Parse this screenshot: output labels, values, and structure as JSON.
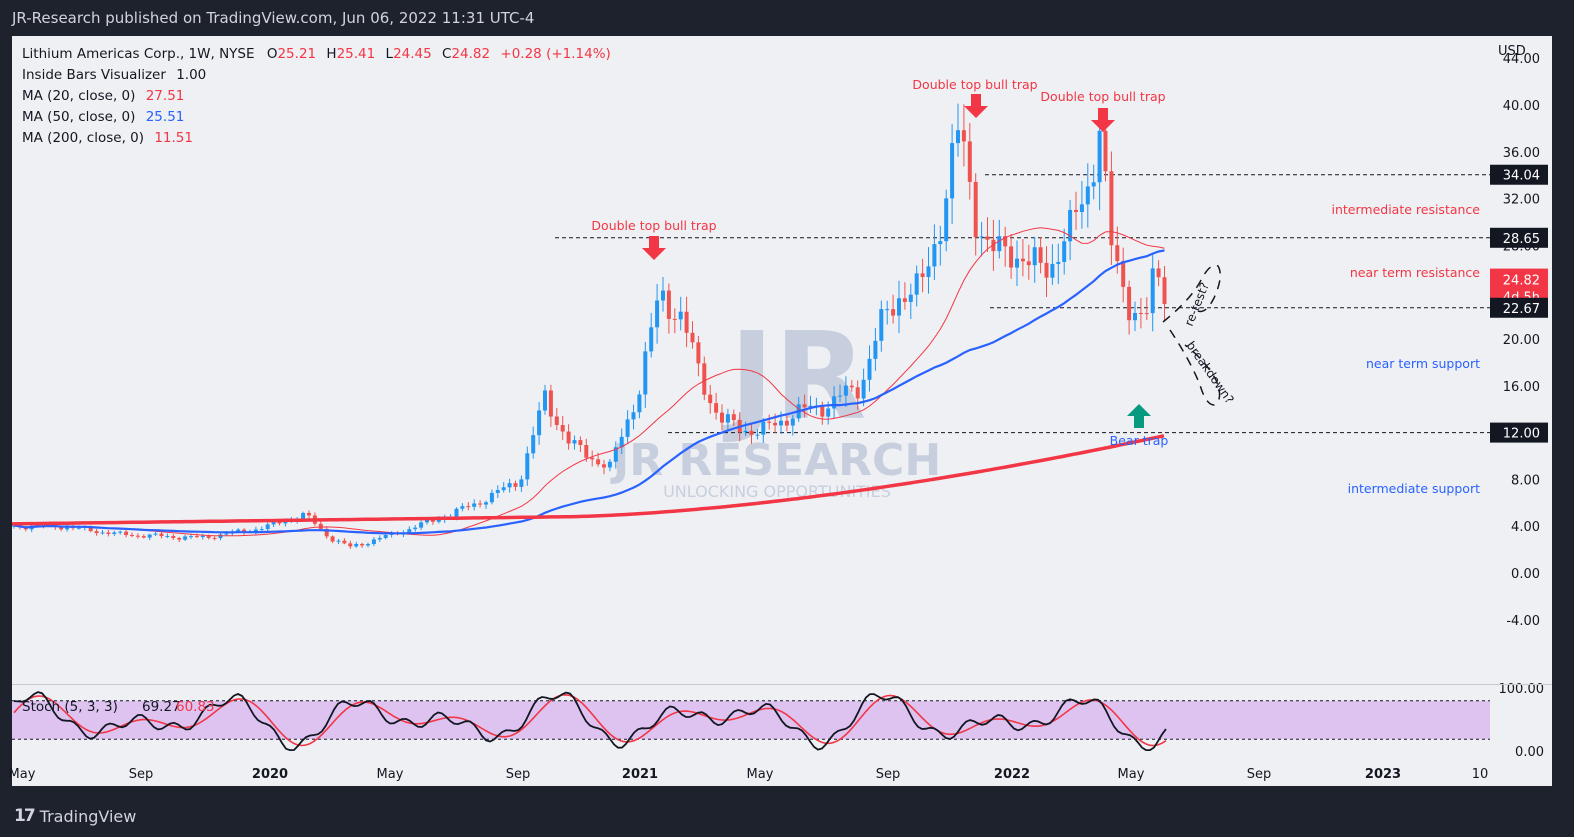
{
  "header": {
    "publisher": "JR-Research published on TradingView.com, Jun 06, 2022 11:31 UTC-4"
  },
  "legend": {
    "symbol": "Lithium Americas Corp., 1W, NYSE",
    "ohlc": {
      "O": "25.21",
      "H": "25.41",
      "L": "24.45",
      "C": "24.82",
      "change": "+0.28 (+1.14%)"
    },
    "indicator": {
      "name": "Inside Bars Visualizer",
      "value": "1.00"
    },
    "ma": [
      {
        "label": "MA (20, close, 0)",
        "value": "27.51",
        "color": "#f23645"
      },
      {
        "label": "MA (50, close, 0)",
        "value": "25.51",
        "color": "#2962ff"
      },
      {
        "label": "MA (200, close, 0)",
        "value": "11.51",
        "color": "#f23645"
      }
    ]
  },
  "watermark": {
    "logo": "JR",
    "name": "JR RESEARCH",
    "tagline": "UNLOCKING OPPORTUNITIES"
  },
  "footer": {
    "brand": "TradingView",
    "logo_mark": "17"
  },
  "chart_data": {
    "type": "candlestick",
    "currency": "USD",
    "timeframe": "1W",
    "y_range": [
      -6,
      48
    ],
    "y_ticks": [
      "44.00",
      "40.00",
      "36.00",
      "32.00",
      "28.00",
      "24.00",
      "20.00",
      "16.00",
      "12.00",
      "8.00",
      "4.00",
      "0.00",
      "-4.00"
    ],
    "x_labels": [
      "May",
      "Sep",
      "2020",
      "May",
      "Sep",
      "2021",
      "May",
      "Sep",
      "2022",
      "May",
      "Sep",
      "2023",
      "10"
    ],
    "price_labels": [
      {
        "value": 34.04,
        "text": "34.04",
        "color": "#131722"
      },
      {
        "value": 28.65,
        "text": "28.65",
        "color": "#131722"
      },
      {
        "value": 24.82,
        "text": "24.82",
        "sub": "4d 5h",
        "color": "#f23645"
      },
      {
        "value": 22.67,
        "text": "22.67",
        "color": "#131722"
      },
      {
        "value": 12.0,
        "text": "12.00",
        "color": "#131722"
      }
    ],
    "levels": [
      {
        "value": 34.04,
        "label": "intermediate resistance",
        "color": "#f23645"
      },
      {
        "value": 28.65,
        "label": "near term resistance",
        "color": "#f23645"
      },
      {
        "value": 22.67,
        "label": "near term support",
        "color": "#2962ff"
      },
      {
        "value": 12.0,
        "label": "intermediate support",
        "color": "#2962ff"
      }
    ],
    "annotations": [
      {
        "text": "Double top bull trap",
        "color": "#f23645"
      },
      {
        "text": "Double top bull trap",
        "color": "#f23645"
      },
      {
        "text": "Double top bull trap",
        "color": "#f23645"
      },
      {
        "text": "Bear trap",
        "color": "#2962ff"
      },
      {
        "text": "re-test?",
        "color": "#131722"
      },
      {
        "text": "breakdown?",
        "color": "#131722"
      }
    ],
    "series_colors": {
      "up": "#2196f3",
      "down": "#ef5350",
      "ma20": "#f23645",
      "ma50": "#2962ff",
      "ma200": "#f23645"
    },
    "stoch": {
      "label": "Stoch (5, 3, 3)",
      "k": "69.27",
      "d": "60.83",
      "ticks": [
        "100.00",
        "0.00"
      ],
      "k_color": "#131722",
      "d_color": "#f23645",
      "band_color": "#d9b8f0"
    }
  }
}
